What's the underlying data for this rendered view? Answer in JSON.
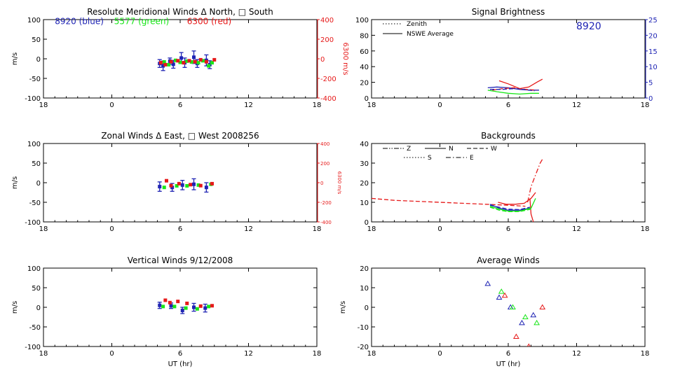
{
  "colors": {
    "axis": "#000000",
    "blue": "#1f24b4",
    "green": "#19e619",
    "red": "#e61919"
  },
  "chart_data": [
    {
      "id": "meridional",
      "type": "scatter",
      "title": "Resolute Meridional Winds Δ North, □ South",
      "xlabel": "",
      "ylabel": "m/s",
      "y2label": "6300 m/s",
      "xlim": [
        18,
        42
      ],
      "ylim": [
        -100,
        100
      ],
      "y2lim": [
        -400,
        400
      ],
      "xticks": [
        18,
        24,
        30,
        36,
        42
      ],
      "xtick_labels": [
        "18",
        "0",
        "6",
        "12",
        "18"
      ],
      "yticks": [
        -100,
        -50,
        0,
        50,
        100
      ],
      "y2ticks": [
        -400,
        -200,
        0,
        200,
        400
      ],
      "labels": [
        {
          "text": "8920 (blue)",
          "color": "blue",
          "x": 19,
          "y": 88
        },
        {
          "text": "5577 (green)",
          "color": "green",
          "x": 24.2,
          "y": 88
        },
        {
          "text": "6300 (red)",
          "color": "red",
          "x": 30.6,
          "y": 88
        }
      ],
      "series": [
        {
          "color": "blue",
          "points": [
            {
              "x": 28.2,
              "y": -12,
              "err": 10
            },
            {
              "x": 28.5,
              "y": -18,
              "err": 12
            },
            {
              "x": 29.1,
              "y": -6,
              "err": 8
            },
            {
              "x": 29.4,
              "y": -14,
              "err": 10
            },
            {
              "x": 30.1,
              "y": 2,
              "err": 14
            },
            {
              "x": 30.4,
              "y": -10,
              "err": 12
            },
            {
              "x": 31.2,
              "y": 4,
              "err": 16
            },
            {
              "x": 31.5,
              "y": -12,
              "err": 10
            },
            {
              "x": 32.3,
              "y": -4,
              "err": 14
            },
            {
              "x": 32.6,
              "y": -15,
              "err": 10
            }
          ]
        },
        {
          "color": "green",
          "points": [
            {
              "x": 28.6,
              "y": -8
            },
            {
              "x": 29.0,
              "y": -15
            },
            {
              "x": 29.6,
              "y": -4
            },
            {
              "x": 30.0,
              "y": -9
            },
            {
              "x": 30.6,
              "y": -6
            },
            {
              "x": 31.0,
              "y": -8
            },
            {
              "x": 31.6,
              "y": -10
            },
            {
              "x": 32.0,
              "y": -5
            },
            {
              "x": 32.8,
              "y": -10
            },
            {
              "x": 32.5,
              "y": -18
            }
          ]
        },
        {
          "color": "red",
          "scale": "y2",
          "points": [
            {
              "x": 28.3,
              "y": -40
            },
            {
              "x": 28.7,
              "y": -60
            },
            {
              "x": 29.2,
              "y": -30
            },
            {
              "x": 29.8,
              "y": -20
            },
            {
              "x": 30.3,
              "y": -40
            },
            {
              "x": 30.8,
              "y": -20
            },
            {
              "x": 31.3,
              "y": -30
            },
            {
              "x": 31.8,
              "y": -10
            },
            {
              "x": 32.3,
              "y": -30
            },
            {
              "x": 33.0,
              "y": -10
            }
          ]
        }
      ]
    },
    {
      "id": "brightness",
      "type": "line",
      "title": "Signal Brightness",
      "xlabel": "",
      "ylabel": "",
      "xlim": [
        18,
        42
      ],
      "ylim": [
        0,
        100
      ],
      "y2lim": [
        0,
        25
      ],
      "xticks": [
        18,
        24,
        30,
        36,
        42
      ],
      "xtick_labels": [
        "18",
        "0",
        "6",
        "12",
        "18"
      ],
      "yticks": [
        0,
        20,
        40,
        60,
        80,
        100
      ],
      "y2ticks": [
        0,
        5,
        10,
        15,
        20,
        25
      ],
      "legend": [
        {
          "text": "Zenith",
          "dash": "dotted"
        },
        {
          "text": "NSWE Average",
          "dash": "solid"
        }
      ],
      "annotation": {
        "text": "8920",
        "color": "blue"
      },
      "series": [
        {
          "color": "blue",
          "dash": "solid",
          "x": [
            28.2,
            29,
            30,
            31,
            32,
            32.7
          ],
          "y": [
            13,
            14,
            13,
            11,
            10,
            10
          ]
        },
        {
          "color": "green",
          "dash": "solid",
          "x": [
            28.2,
            29,
            30,
            31,
            32,
            32.7
          ],
          "y": [
            10,
            8,
            6,
            5,
            6,
            6
          ]
        },
        {
          "color": "red",
          "dash": "solid",
          "x": [
            29.2,
            30,
            31,
            31.8,
            32.5,
            33.0
          ],
          "y": [
            22,
            18,
            12,
            14,
            20,
            24
          ]
        },
        {
          "color": "red",
          "dash": "dashed",
          "x": [
            28.6,
            29.5,
            30.5,
            31.5,
            32.5
          ],
          "y": [
            10,
            12,
            13,
            11,
            10
          ]
        },
        {
          "color": "blue",
          "dash": "dashed",
          "x": [
            28.4,
            29.5,
            30.5,
            31.3,
            32.3
          ],
          "y": [
            11,
            11,
            12,
            11,
            9
          ]
        }
      ]
    },
    {
      "id": "zonal",
      "type": "scatter",
      "title": "Zonal Winds Δ East, □ West 2008256",
      "xlabel": "",
      "ylabel": "m/s",
      "y2label": "6300 m/s",
      "xlim": [
        18,
        42
      ],
      "ylim": [
        -100,
        100
      ],
      "y2lim": [
        -400,
        400
      ],
      "xticks": [
        18,
        24,
        30,
        36,
        42
      ],
      "xtick_labels": [
        "18",
        "0",
        "6",
        "12",
        "18"
      ],
      "yticks": [
        -100,
        -50,
        0,
        50,
        100
      ],
      "y2ticks": [
        -400,
        -200,
        0,
        200,
        400
      ],
      "series": [
        {
          "color": "blue",
          "points": [
            {
              "x": 28.2,
              "y": -10,
              "err": 12
            },
            {
              "x": 29.3,
              "y": -12,
              "err": 10
            },
            {
              "x": 30.2,
              "y": -6,
              "err": 12
            },
            {
              "x": 31.2,
              "y": -4,
              "err": 14
            },
            {
              "x": 32.3,
              "y": -12,
              "err": 12
            }
          ]
        },
        {
          "color": "green",
          "points": [
            {
              "x": 28.6,
              "y": -12
            },
            {
              "x": 29.7,
              "y": -8
            },
            {
              "x": 30.6,
              "y": -8
            },
            {
              "x": 31.6,
              "y": -6
            },
            {
              "x": 32.7,
              "y": -4
            }
          ]
        },
        {
          "color": "red",
          "scale": "y2",
          "points": [
            {
              "x": 28.8,
              "y": 20
            },
            {
              "x": 29.2,
              "y": -30
            },
            {
              "x": 29.9,
              "y": -10
            },
            {
              "x": 30.9,
              "y": -20
            },
            {
              "x": 31.8,
              "y": -30
            },
            {
              "x": 32.8,
              "y": -10
            }
          ]
        }
      ]
    },
    {
      "id": "backgrounds",
      "type": "line",
      "title": "Backgrounds",
      "xlabel": "",
      "ylabel": "",
      "xlim": [
        18,
        42
      ],
      "ylim": [
        0,
        40
      ],
      "xticks": [
        18,
        24,
        30,
        36,
        42
      ],
      "xtick_labels": [
        "18",
        "0",
        "6",
        "12",
        "18"
      ],
      "yticks": [
        0,
        10,
        20,
        30,
        40
      ],
      "legend": [
        {
          "text": "Z",
          "dash": "dashdotdot"
        },
        {
          "text": "N",
          "dash": "solid"
        },
        {
          "text": "W",
          "dash": "dashed"
        },
        {
          "text": "S",
          "dash": "dotted"
        },
        {
          "text": "E",
          "dash": "dashdot"
        }
      ],
      "series": [
        {
          "color": "red",
          "dash": "dashed",
          "x": [
            18,
            20,
            22,
            24,
            26,
            28,
            30,
            31.5
          ],
          "y": [
            12,
            11,
            10.5,
            10,
            9.5,
            9,
            8.5,
            8
          ]
        },
        {
          "color": "red",
          "dash": "solid",
          "x": [
            29.1,
            29.8,
            30.6,
            31.4,
            32.0,
            32.4
          ],
          "y": [
            10,
            9,
            9,
            9.5,
            12,
            15
          ]
        },
        {
          "color": "red",
          "dash": "dashdot",
          "x": [
            31.7,
            32.0,
            32.4,
            32.8,
            33.0
          ],
          "y": [
            10,
            18,
            24,
            30,
            32
          ]
        },
        {
          "color": "red",
          "dash": "solid",
          "x": [
            31.9,
            32.0,
            32.2
          ],
          "y": [
            12,
            4,
            0
          ]
        },
        {
          "color": "blue",
          "dash": "solid",
          "x": [
            28.4,
            29.2,
            30.0,
            31.0,
            31.9
          ],
          "y": [
            9,
            7,
            6,
            6,
            7
          ]
        },
        {
          "color": "blue",
          "dash": "dashed",
          "x": [
            28.4,
            29.2,
            30.0,
            31.0,
            31.9
          ],
          "y": [
            8.5,
            7.5,
            6.5,
            6.3,
            7.5
          ]
        },
        {
          "color": "green",
          "dash": "solid",
          "x": [
            28.4,
            29.2,
            30.0,
            31.0,
            32.0,
            32.4
          ],
          "y": [
            8,
            6.5,
            5.5,
            5.5,
            7,
            12
          ]
        },
        {
          "color": "green",
          "dash": "dashed",
          "x": [
            28.4,
            29.2,
            30.0,
            31.0,
            32.0
          ],
          "y": [
            7.5,
            6,
            5.2,
            5.3,
            6.5
          ]
        }
      ]
    },
    {
      "id": "vertical",
      "type": "scatter",
      "title": "Vertical Winds 9/12/2008",
      "xlabel": "UT (hr)",
      "ylabel": "m/s",
      "xlim": [
        18,
        42
      ],
      "ylim": [
        -100,
        100
      ],
      "xticks": [
        18,
        24,
        30,
        36,
        42
      ],
      "xtick_labels": [
        "18",
        "0",
        "6",
        "12",
        "18"
      ],
      "yticks": [
        -100,
        -50,
        0,
        50,
        100
      ],
      "series": [
        {
          "color": "blue",
          "points": [
            {
              "x": 28.2,
              "y": 5,
              "err": 8
            },
            {
              "x": 29.2,
              "y": 4,
              "err": 7
            },
            {
              "x": 30.2,
              "y": -8,
              "err": 8
            },
            {
              "x": 31.2,
              "y": 0,
              "err": 10
            },
            {
              "x": 32.2,
              "y": -2,
              "err": 10
            }
          ]
        },
        {
          "color": "green",
          "points": [
            {
              "x": 28.5,
              "y": 2
            },
            {
              "x": 29.5,
              "y": 2
            },
            {
              "x": 30.5,
              "y": -2
            },
            {
              "x": 31.5,
              "y": -4
            },
            {
              "x": 32.5,
              "y": 2
            }
          ]
        },
        {
          "color": "red",
          "points": [
            {
              "x": 28.7,
              "y": 18
            },
            {
              "x": 29.1,
              "y": 12
            },
            {
              "x": 29.8,
              "y": 15
            },
            {
              "x": 30.6,
              "y": 10
            },
            {
              "x": 31.8,
              "y": 3
            },
            {
              "x": 32.8,
              "y": 4
            }
          ]
        }
      ]
    },
    {
      "id": "average",
      "type": "scatter",
      "title": "Average Winds",
      "xlabel": "UT (hr)",
      "ylabel": "m/s",
      "xlim": [
        18,
        42
      ],
      "ylim": [
        -20,
        20
      ],
      "xticks": [
        18,
        24,
        30,
        36,
        42
      ],
      "xtick_labels": [
        "18",
        "0",
        "6",
        "12",
        "18"
      ],
      "yticks": [
        -20,
        -10,
        0,
        10,
        20
      ],
      "series": [
        {
          "color": "blue",
          "marker": "triangle",
          "points": [
            {
              "x": 28.2,
              "y": 12
            },
            {
              "x": 29.2,
              "y": 5
            },
            {
              "x": 30.2,
              "y": 0
            },
            {
              "x": 31.2,
              "y": -8
            },
            {
              "x": 32.2,
              "y": -4
            }
          ]
        },
        {
          "color": "green",
          "marker": "triangle",
          "points": [
            {
              "x": 29.4,
              "y": 8
            },
            {
              "x": 30.4,
              "y": 0
            },
            {
              "x": 31.5,
              "y": -5
            },
            {
              "x": 32.5,
              "y": -8
            }
          ]
        },
        {
          "color": "red",
          "marker": "triangle",
          "points": [
            {
              "x": 29.7,
              "y": 6
            },
            {
              "x": 30.7,
              "y": -15
            },
            {
              "x": 31.8,
              "y": -20
            },
            {
              "x": 33.0,
              "y": 0
            }
          ]
        }
      ]
    }
  ]
}
